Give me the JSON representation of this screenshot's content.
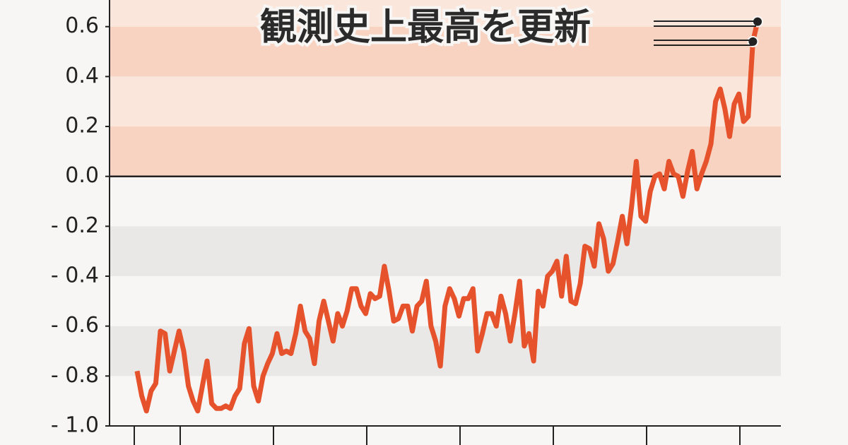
{
  "chart_data": {
    "type": "line",
    "title": "観測史上最高を更新",
    "values": [
      -0.78,
      -0.88,
      -0.94,
      -0.86,
      -0.83,
      -0.62,
      -0.63,
      -0.78,
      -0.7,
      -0.62,
      -0.7,
      -0.84,
      -0.9,
      -0.94,
      -0.84,
      -0.74,
      -0.91,
      -0.93,
      -0.93,
      -0.92,
      -0.93,
      -0.88,
      -0.85,
      -0.67,
      -0.61,
      -0.84,
      -0.9,
      -0.8,
      -0.75,
      -0.71,
      -0.63,
      -0.71,
      -0.7,
      -0.71,
      -0.63,
      -0.52,
      -0.62,
      -0.65,
      -0.75,
      -0.58,
      -0.5,
      -0.58,
      -0.66,
      -0.55,
      -0.6,
      -0.54,
      -0.45,
      -0.45,
      -0.52,
      -0.55,
      -0.47,
      -0.49,
      -0.48,
      -0.36,
      -0.46,
      -0.58,
      -0.57,
      -0.52,
      -0.52,
      -0.62,
      -0.52,
      -0.5,
      -0.42,
      -0.6,
      -0.66,
      -0.76,
      -0.52,
      -0.45,
      -0.49,
      -0.56,
      -0.49,
      -0.49,
      -0.45,
      -0.7,
      -0.63,
      -0.55,
      -0.55,
      -0.6,
      -0.48,
      -0.55,
      -0.66,
      -0.55,
      -0.42,
      -0.68,
      -0.63,
      -0.74,
      -0.46,
      -0.52,
      -0.4,
      -0.38,
      -0.34,
      -0.48,
      -0.32,
      -0.5,
      -0.51,
      -0.43,
      -0.28,
      -0.29,
      -0.36,
      -0.19,
      -0.25,
      -0.38,
      -0.35,
      -0.26,
      -0.16,
      -0.27,
      -0.12,
      0.06,
      -0.16,
      -0.18,
      -0.06,
      0.0,
      0.01,
      -0.05,
      0.06,
      0.01,
      0.0,
      -0.08,
      0.02,
      0.1,
      -0.05,
      0.01,
      0.06,
      0.13,
      0.3,
      0.35,
      0.27,
      0.16,
      0.29,
      0.33,
      0.22,
      0.24,
      0.54,
      0.62
    ],
    "color": "#e5522b",
    "ylim": [
      -1.0,
      0.7
    ],
    "yticks": [
      {
        "value": -1.0,
        "label": "- 1.0"
      },
      {
        "value": -0.8,
        "label": "- 0.8"
      },
      {
        "value": -0.6,
        "label": "- 0.6"
      },
      {
        "value": -0.4,
        "label": "- 0.4"
      },
      {
        "value": -0.2,
        "label": "- 0.2"
      },
      {
        "value": 0,
        "label": "0.0"
      },
      0.2,
      0.4,
      0.6
    ]
  }
}
